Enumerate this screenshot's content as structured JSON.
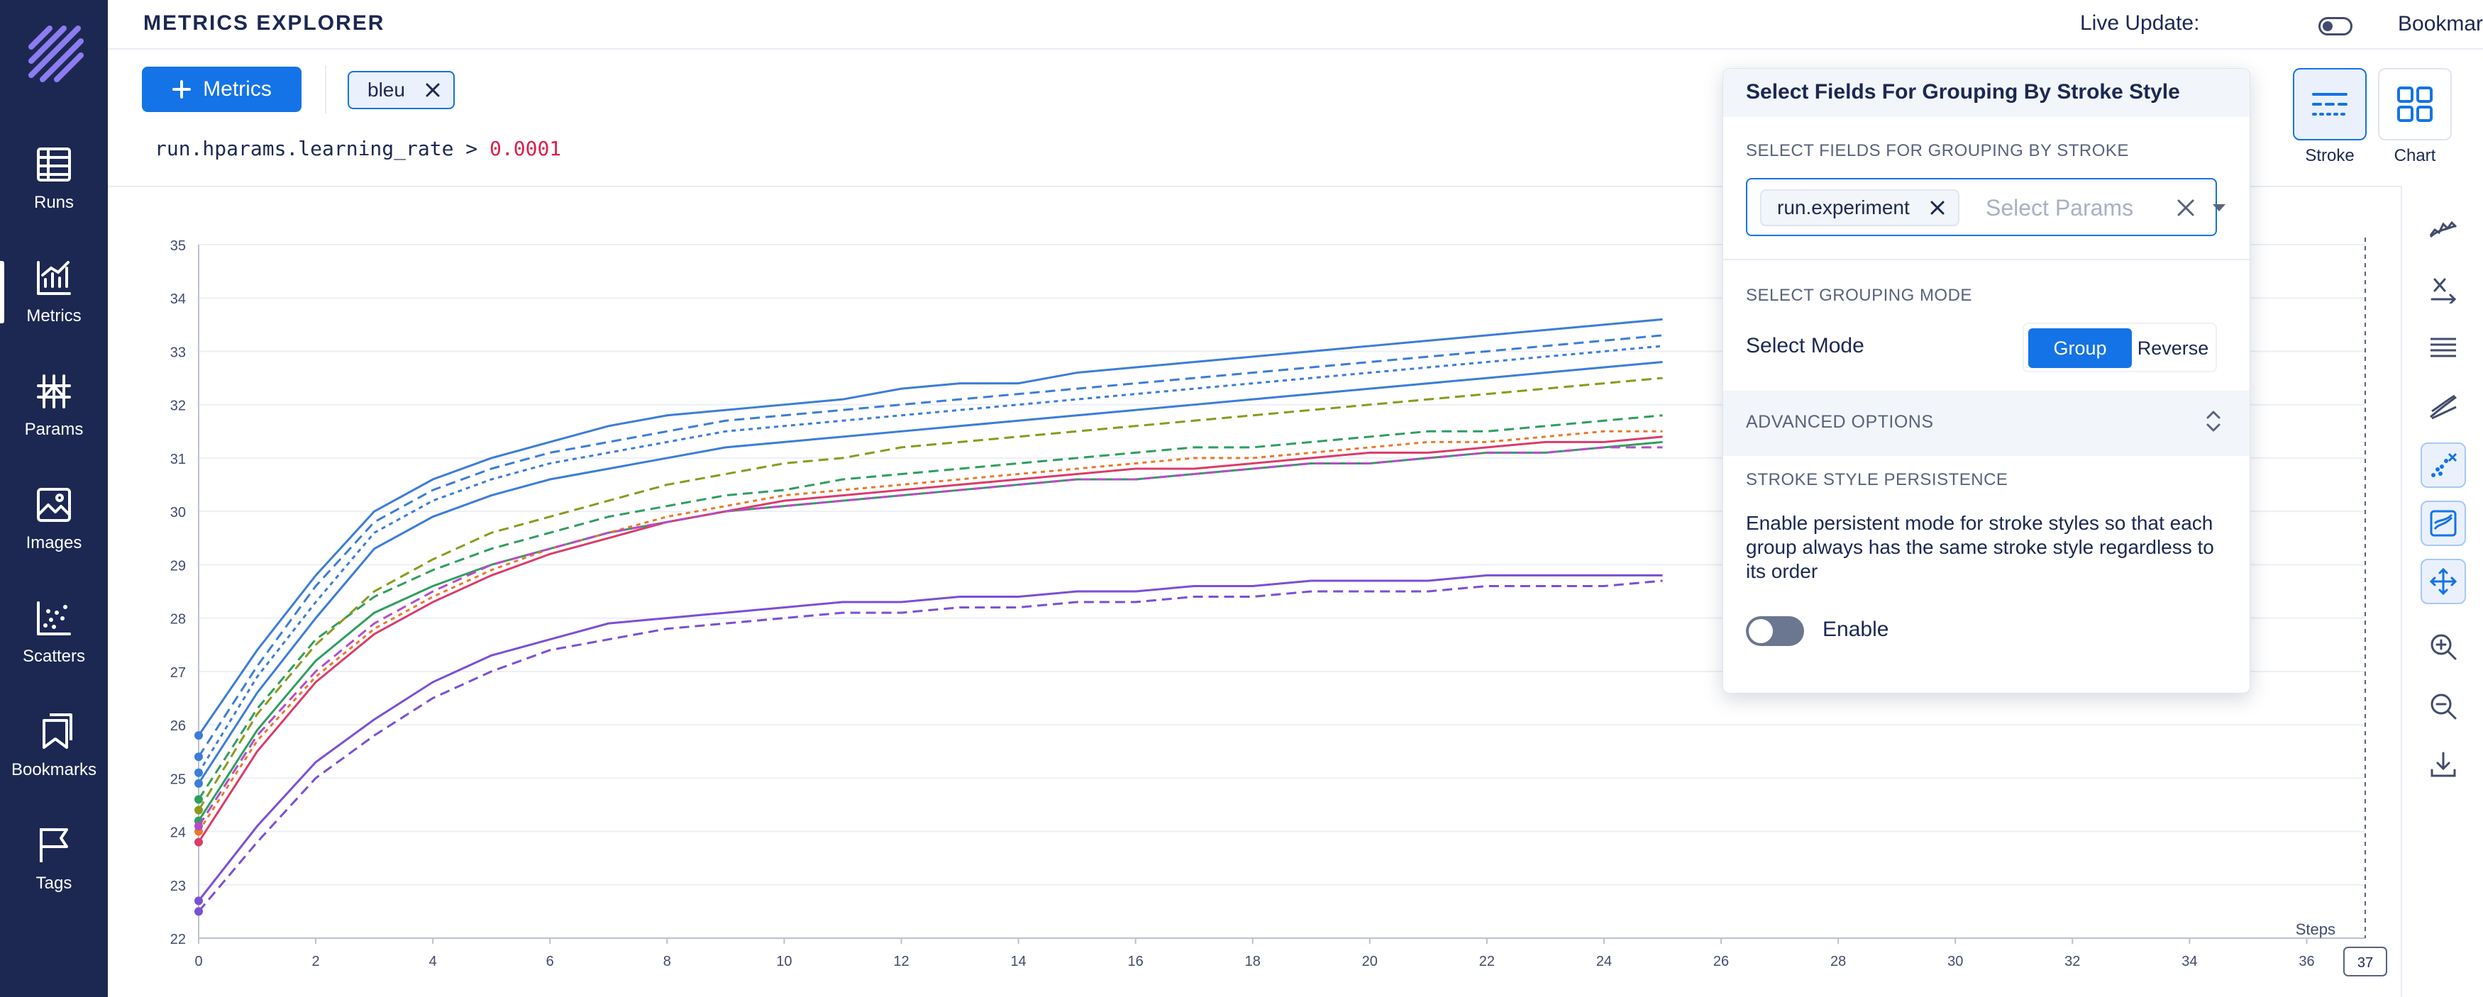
{
  "header": {
    "title": "METRICS EXPLORER",
    "live_update_label": "Live Update:",
    "bookmark_label": "Bookmark"
  },
  "sidebar": {
    "items": [
      {
        "label": "Runs",
        "icon": "table-icon"
      },
      {
        "label": "Metrics",
        "icon": "line-chart-icon",
        "active": true
      },
      {
        "label": "Params",
        "icon": "hash-grid-icon"
      },
      {
        "label": "Images",
        "icon": "image-icon"
      },
      {
        "label": "Scatters",
        "icon": "scatter-icon"
      },
      {
        "label": "Bookmarks",
        "icon": "bookmarks-icon"
      },
      {
        "label": "Tags",
        "icon": "flag-icon"
      }
    ]
  },
  "select_bar": {
    "add_button_label": "Metrics",
    "selected_metrics": [
      "bleu"
    ],
    "query_prefix": "run.hparams.learning_rate > ",
    "query_value": "0.0001"
  },
  "controls": {
    "stroke_label": "Stroke",
    "chart_label": "Chart",
    "toolbar_icons": [
      "smoothing-icon",
      "x-axis-icon",
      "highlight-mode-icon",
      "outlier-icon",
      "zoom-mode-icon",
      "aggregate-icon",
      "move-icon",
      "zoom-in-icon",
      "zoom-out-icon",
      "download-icon"
    ]
  },
  "popover": {
    "title": "Select Fields For Grouping By Stroke Style",
    "fields_section": "SELECT FIELDS FOR GROUPING BY STROKE",
    "selected_field": "run.experiment",
    "params_placeholder": "Select Params",
    "grouping_section": "SELECT GROUPING MODE",
    "mode_label": "Select Mode",
    "mode_options": [
      "Group",
      "Reverse"
    ],
    "mode_selected": "Group",
    "advanced_label": "ADVANCED OPTIONS",
    "persistence_section": "STROKE STYLE PERSISTENCE",
    "persistence_description": "Enable persistent mode for stroke styles so that each group always has the same stroke style regardless to its order",
    "enable_label": "Enable",
    "enabled": false
  },
  "chart_data": {
    "type": "line",
    "metric": "bleu",
    "xlabel": "Steps",
    "x_ticks": [
      0,
      2,
      4,
      6,
      8,
      10,
      12,
      14,
      16,
      18,
      20,
      22,
      24,
      26,
      28,
      30,
      32,
      34,
      36
    ],
    "x_current": "37",
    "y_ticks": [
      22,
      23,
      24,
      25,
      26,
      27,
      28,
      29,
      30,
      31,
      32,
      33,
      34,
      35
    ],
    "xlim": [
      0,
      37
    ],
    "ylim": [
      22,
      35
    ],
    "grid": true,
    "series": [
      {
        "color": "#3b7dd8",
        "values": [
          25.8,
          27.4,
          28.8,
          30.0,
          30.6,
          31.0,
          31.3,
          31.6,
          31.8,
          31.9,
          32.0,
          32.1,
          32.3,
          32.4,
          32.4,
          32.6,
          32.7,
          32.8,
          32.9,
          33.0,
          33.1,
          33.2,
          33.3,
          33.4,
          33.5,
          33.6
        ]
      },
      {
        "color": "#3b7dd8",
        "values": [
          25.4,
          27.1,
          28.6,
          29.8,
          30.4,
          30.8,
          31.1,
          31.3,
          31.5,
          31.7,
          31.8,
          31.9,
          32.0,
          32.1,
          32.2,
          32.3,
          32.4,
          32.5,
          32.6,
          32.7,
          32.8,
          32.9,
          33.0,
          33.1,
          33.2,
          33.3
        ]
      },
      {
        "color": "#3b7dd8",
        "values": [
          25.1,
          26.9,
          28.3,
          29.6,
          30.2,
          30.6,
          30.9,
          31.1,
          31.3,
          31.5,
          31.6,
          31.7,
          31.8,
          31.9,
          32.0,
          32.1,
          32.2,
          32.3,
          32.4,
          32.5,
          32.6,
          32.7,
          32.8,
          32.9,
          33.0,
          33.1
        ]
      },
      {
        "color": "#3b7dd8",
        "values": [
          24.9,
          26.6,
          28.0,
          29.3,
          29.9,
          30.3,
          30.6,
          30.8,
          31.0,
          31.2,
          31.3,
          31.4,
          31.5,
          31.6,
          31.7,
          31.8,
          31.9,
          32.0,
          32.1,
          32.2,
          32.3,
          32.4,
          32.5,
          32.6,
          32.7,
          32.8
        ]
      },
      {
        "color": "#2f9e5f",
        "values": [
          24.6,
          26.3,
          27.6,
          28.4,
          28.9,
          29.3,
          29.6,
          29.9,
          30.1,
          30.3,
          30.4,
          30.6,
          30.7,
          30.8,
          30.9,
          31.0,
          31.1,
          31.2,
          31.2,
          31.3,
          31.4,
          31.5,
          31.5,
          31.6,
          31.7,
          31.8
        ]
      },
      {
        "color": "#2f9e5f",
        "values": [
          24.2,
          25.9,
          27.2,
          28.1,
          28.6,
          29.0,
          29.3,
          29.6,
          29.8,
          30.0,
          30.1,
          30.2,
          30.3,
          30.4,
          30.5,
          30.6,
          30.6,
          30.7,
          30.8,
          30.9,
          30.9,
          31.0,
          31.1,
          31.1,
          31.2,
          31.3
        ]
      },
      {
        "color": "#8a9a1c",
        "values": [
          24.4,
          26.2,
          27.5,
          28.5,
          29.1,
          29.6,
          29.9,
          30.2,
          30.5,
          30.7,
          30.9,
          31.0,
          31.2,
          31.3,
          31.4,
          31.5,
          31.6,
          31.7,
          31.8,
          31.9,
          32.0,
          32.1,
          32.2,
          32.3,
          32.4,
          32.5
        ]
      },
      {
        "color": "#e8792b",
        "values": [
          24.0,
          25.7,
          26.9,
          27.8,
          28.4,
          28.9,
          29.3,
          29.6,
          29.9,
          30.1,
          30.3,
          30.4,
          30.5,
          30.6,
          30.7,
          30.8,
          30.9,
          31.0,
          31.0,
          31.1,
          31.2,
          31.3,
          31.3,
          31.4,
          31.5,
          31.5
        ]
      },
      {
        "color": "#d93c6a",
        "values": [
          23.8,
          25.5,
          26.8,
          27.7,
          28.3,
          28.8,
          29.2,
          29.5,
          29.8,
          30.0,
          30.2,
          30.3,
          30.4,
          30.5,
          30.6,
          30.7,
          30.8,
          30.8,
          30.9,
          31.0,
          31.1,
          31.1,
          31.2,
          31.3,
          31.3,
          31.4
        ]
      },
      {
        "color": "#b64cc9",
        "values": [
          24.1,
          25.8,
          27.0,
          27.9,
          28.5,
          29.0,
          29.3,
          29.6,
          29.8,
          30.0,
          30.1,
          30.2,
          30.3,
          30.4,
          30.5,
          30.6,
          30.6,
          30.7,
          30.8,
          30.9,
          30.9,
          31.0,
          31.1,
          31.1,
          31.2,
          31.2
        ]
      },
      {
        "color": "#7b4fd6",
        "values": [
          22.7,
          24.1,
          25.3,
          26.1,
          26.8,
          27.3,
          27.6,
          27.9,
          28.0,
          28.1,
          28.2,
          28.3,
          28.3,
          28.4,
          28.4,
          28.5,
          28.5,
          28.6,
          28.6,
          28.7,
          28.7,
          28.7,
          28.8,
          28.8,
          28.8,
          28.8
        ]
      },
      {
        "color": "#7b4fd6",
        "values": [
          22.5,
          23.8,
          25.0,
          25.8,
          26.5,
          27.0,
          27.4,
          27.6,
          27.8,
          27.9,
          28.0,
          28.1,
          28.1,
          28.2,
          28.2,
          28.3,
          28.3,
          28.4,
          28.4,
          28.5,
          28.5,
          28.5,
          28.6,
          28.6,
          28.6,
          28.7
        ]
      }
    ]
  }
}
